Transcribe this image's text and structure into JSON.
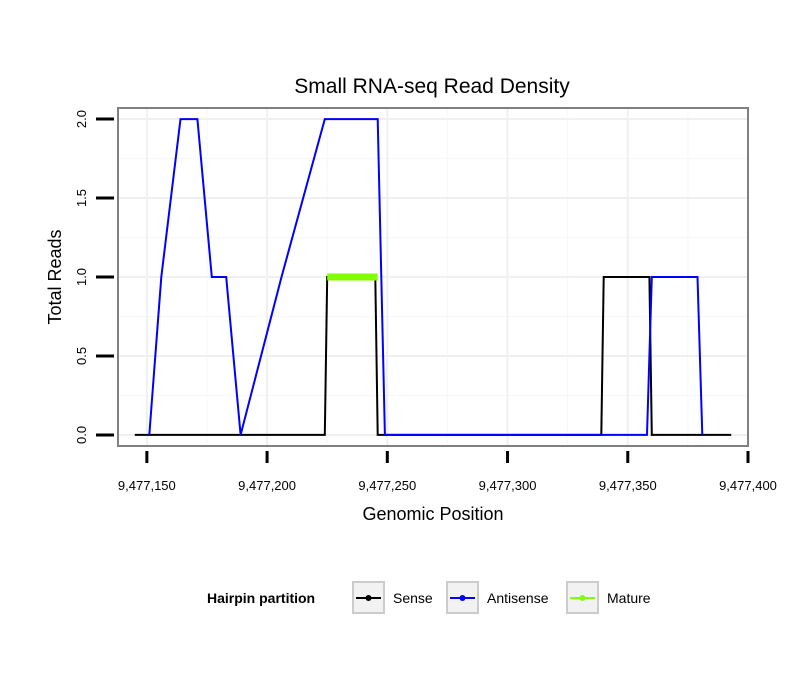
{
  "chart_data": {
    "type": "line",
    "title": "Small RNA-seq Read Density",
    "xlabel": "Genomic Position",
    "ylabel": "Total Reads",
    "xlim": [
      9477138,
      9477400
    ],
    "ylim": [
      -0.07,
      2.07
    ],
    "x_ticks": [
      9477150,
      9477200,
      9477250,
      9477300,
      9477350,
      9477400
    ],
    "x_tick_labels": [
      "9,477,150",
      "9,477,200",
      "9,477,250",
      "9,477,300",
      "9,477,350",
      "9,477,400"
    ],
    "y_ticks": [
      0.0,
      0.5,
      1.0,
      1.5,
      2.0
    ],
    "y_tick_labels": [
      "0.0",
      "0.5",
      "1.0",
      "1.5",
      "2.0"
    ],
    "grid": true,
    "legend_position": "bottom",
    "legend_title": "Hairpin partition",
    "series": [
      {
        "name": "Sense",
        "color": "#000000",
        "x": [
          9477145,
          9477224,
          9477225,
          9477245,
          9477246,
          9477339,
          9477340,
          9477359,
          9477360,
          9477393
        ],
        "y": [
          0,
          0,
          1,
          1,
          0,
          0,
          1,
          1,
          0,
          0
        ]
      },
      {
        "name": "Antisense",
        "color": "#0000ff",
        "x": [
          9477151,
          9477156,
          9477164,
          9477171,
          9477177,
          9477183,
          9477189,
          9477206,
          9477224,
          9477246,
          9477249,
          9477358,
          9477360,
          9477379,
          9477381
        ],
        "y": [
          0,
          1,
          2,
          2,
          1,
          1,
          0,
          1,
          2,
          2,
          0,
          0,
          1,
          1,
          0
        ]
      },
      {
        "name": "Mature",
        "color": "#7fff00",
        "x": [
          9477225,
          9477246
        ],
        "y": [
          1,
          1
        ]
      }
    ]
  },
  "legend": {
    "title": "Hairpin partition",
    "items": [
      {
        "label": "Sense",
        "color": "#000000"
      },
      {
        "label": "Antisense",
        "color": "#0000ff"
      },
      {
        "label": "Mature",
        "color": "#7fff00"
      }
    ]
  }
}
